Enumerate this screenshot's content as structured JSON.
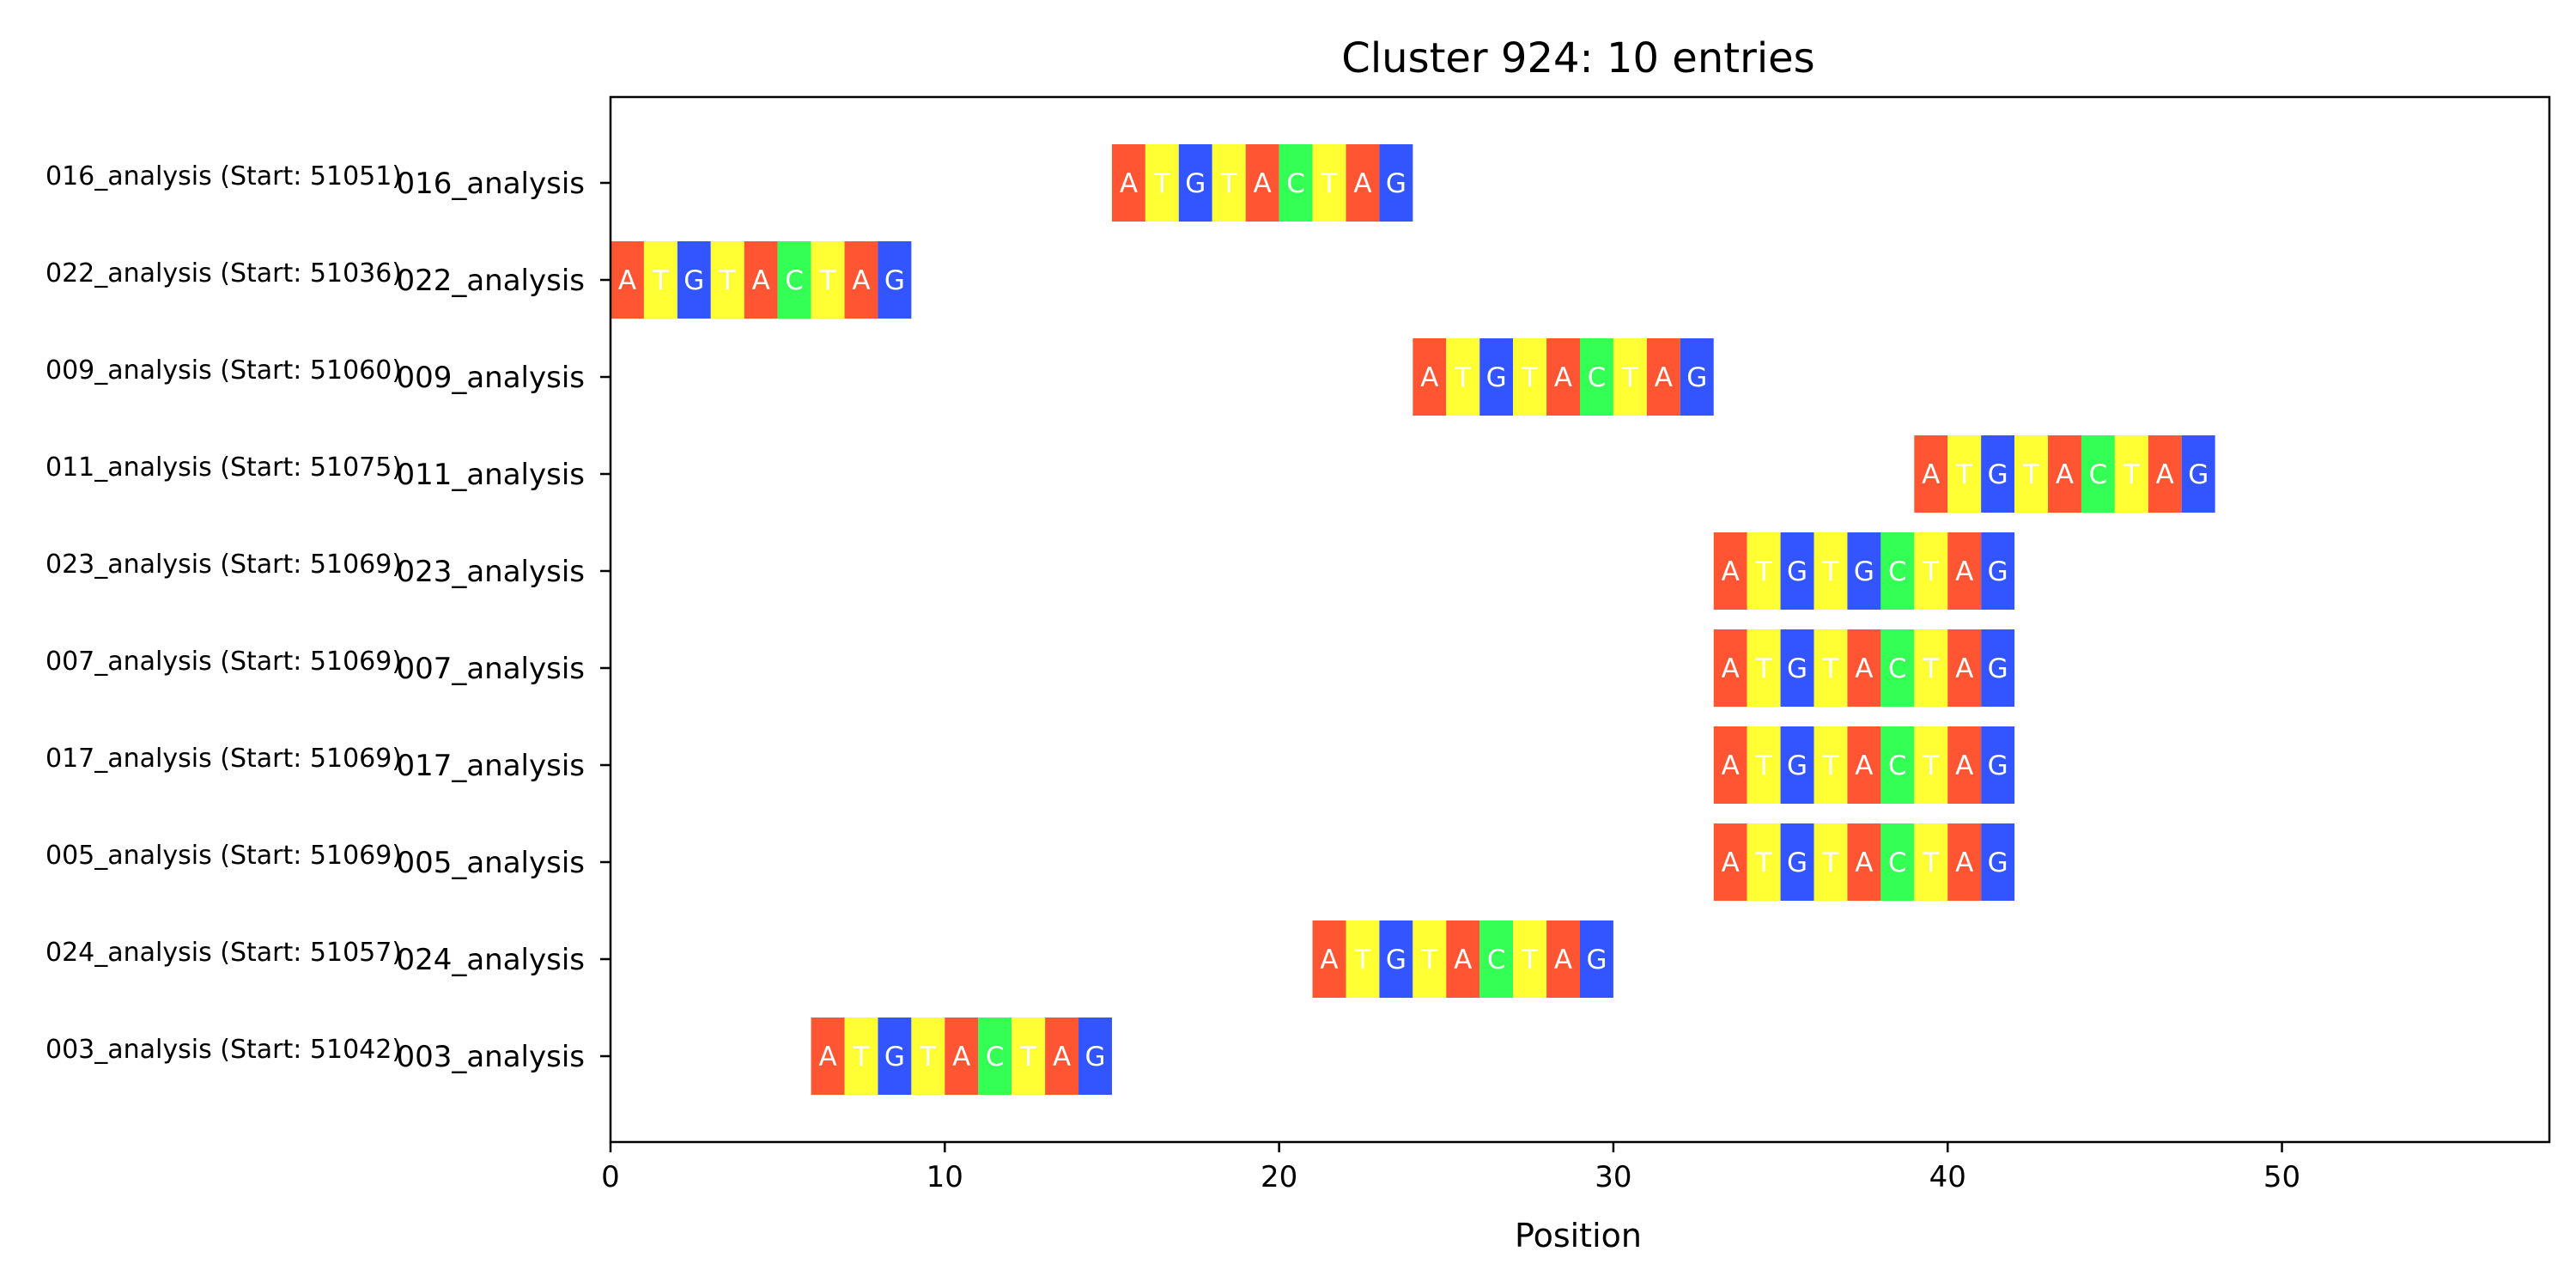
{
  "chart_data": {
    "type": "sequence-alignment",
    "title": "Cluster 924: 10 entries",
    "xlabel": "Position",
    "xlim": [
      0,
      58
    ],
    "xticks": [
      0,
      10,
      20,
      30,
      40,
      50
    ],
    "grid": false,
    "base_colors": {
      "A": "#ff5533",
      "T": "#ffff33",
      "G": "#3355ff",
      "C": "#33ff55"
    },
    "rows": [
      {
        "label": "016_analysis",
        "outer_label": "016_analysis (Start: 51051)",
        "start": 15,
        "sequence": "ATGTACTAG"
      },
      {
        "label": "022_analysis",
        "outer_label": "022_analysis (Start: 51036)",
        "start": 0,
        "sequence": "ATGTACTAG"
      },
      {
        "label": "009_analysis",
        "outer_label": "009_analysis (Start: 51060)",
        "start": 24,
        "sequence": "ATGTACTAG"
      },
      {
        "label": "011_analysis",
        "outer_label": "011_analysis (Start: 51075)",
        "start": 39,
        "sequence": "ATGTACTAG"
      },
      {
        "label": "023_analysis",
        "outer_label": "023_analysis (Start: 51069)",
        "start": 33,
        "sequence": "ATGTGCTAG"
      },
      {
        "label": "007_analysis",
        "outer_label": "007_analysis (Start: 51069)",
        "start": 33,
        "sequence": "ATGTACTAG"
      },
      {
        "label": "017_analysis",
        "outer_label": "017_analysis (Start: 51069)",
        "start": 33,
        "sequence": "ATGTACTAG"
      },
      {
        "label": "005_analysis",
        "outer_label": "005_analysis (Start: 51069)",
        "start": 33,
        "sequence": "ATGTACTAG"
      },
      {
        "label": "024_analysis",
        "outer_label": "024_analysis (Start: 51057)",
        "start": 21,
        "sequence": "ATGTACTAG"
      },
      {
        "label": "003_analysis",
        "outer_label": "003_analysis (Start: 51042)",
        "start": 6,
        "sequence": "ATGTACTAG"
      }
    ]
  }
}
